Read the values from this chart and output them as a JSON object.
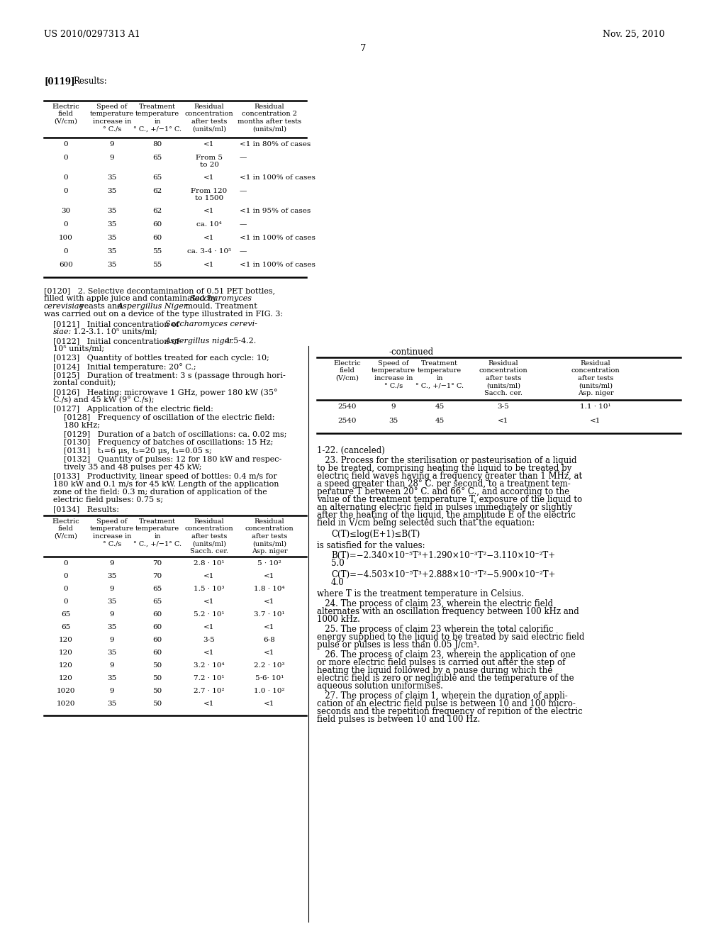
{
  "background_color": "#ffffff",
  "header_left": "US 2010/0297313 A1",
  "header_right": "Nov. 25, 2010",
  "page_number": "7",
  "section_119": "[0119]   Results:",
  "table1_headers": [
    "Electric\nfield\n(V/cm)",
    "Speed of\ntemperature\nincrease in\n° C./s",
    "Treatment\ntemperature\nin\n° C., +/–1° C.",
    "Residual\nconcentration\nafter tests\n(units/ml)",
    "Residual\nconcentration 2\nmonths after tests\n(units/ml)"
  ],
  "table1_rows": [
    [
      "0",
      "9",
      "80",
      "<1",
      "<1 in 80% of cases"
    ],
    [
      "0",
      "9",
      "65",
      "From 5\nto 20",
      "—"
    ],
    [
      "0",
      "35",
      "65",
      "<1",
      "<1 in 100% of cases"
    ],
    [
      "0",
      "35",
      "62",
      "From 120\nto 1500",
      "—"
    ],
    [
      "30",
      "35",
      "62",
      "<1",
      "<1 in 95% of cases"
    ],
    [
      "0",
      "35",
      "60",
      "ca. 10⁴",
      "—"
    ],
    [
      "100",
      "35",
      "60",
      "<1",
      "<1 in 100% of cases"
    ],
    [
      "0",
      "35",
      "55",
      "ca. 3-4 · 10⁵",
      "—"
    ],
    [
      "600",
      "35",
      "55",
      "<1",
      "<1 in 100% of cases"
    ]
  ],
  "paragraph_120": "[0120]   2. Selective decontamination of 0.51 PET bottles, filled with apple juice and contaminated by Saccharomyces cerevisiae yeasts and Aspergillus Niger mould. Treatment was carried out on a device of the type illustrated in FIG. 3:",
  "paragraphs_left": [
    "[0121]   Initial concentration of Saccharomyces cerevi-\nsiae: 1.2-3.1. 10⁵ units/ml;",
    "[0122]   Initial concentration of Aspergillus niger 1.5-4.2.\n10⁵ units/ml;",
    "[0123]   Quantity of bottles treated for each cycle: 10;",
    "[0124]   Initial temperature: 20° C.;",
    "[0125]   Duration of treatment: 3 s (passage through hori-\nzontal conduit);",
    "[0126]   Heating: microwave 1 GHz, power 180 kW (35°\nC./s) and 45 kW (9° C./s);",
    "[0127]   Application of the electric field:",
    "[0128]      Frequency of oscillation of the electric field:\n180 kHz;",
    "[0129]      Duration of a batch of oscillations: ca. 0.02 ms;",
    "[0130]      Frequency of batches of oscillations: 15 Hz;",
    "[0131]      t₁=6 μs, t₂=20 μs, t₃=0.05 s;",
    "[0132]      Quantity of pulses: 12 for 180 kW and respec-\ntively 35 and 48 pulses per 45 kW;",
    "[0133]   Productivity, linear speed of bottles: 0.4 m/s for\n180 kW and 0.1 m/s for 45 kW. Length of the application\nzone of the field: 0.3 m; duration of application of the\nelectric field pulses: 0.75 s;",
    "[0134]   Results:"
  ],
  "continued_label": "-continued",
  "table2_headers": [
    "Electric\nfield\n(V/cm)",
    "Speed of\ntemperature\nincrease in\n° C./s",
    "Treatment\ntemperature\nin\n° C., +/–1° C.",
    "Residual\nconcentration\nafter tests\n(units/ml)\nSacch. cer.",
    "Residual\nconcentration\nafter tests\n(units/ml)\nAsp. niger"
  ],
  "table2_rows": [
    [
      "2540",
      "9",
      "45",
      "3-5",
      "1.1 · 10¹"
    ],
    [
      "2540",
      "35",
      "45",
      "<1",
      "<1"
    ]
  ],
  "table3_headers": [
    "Electric\nfield\n(V/cm)",
    "Speed of\ntemperature\nincrease in\n° C./s",
    "Treatment\ntemperature\nin\n° C., +/–1° C.",
    "Residual\nconcentration\nafter tests\n(units/ml)\nSacch. cer.",
    "Residual\nconcentration\nafter tests\n(units/ml)\nAsp. niger"
  ],
  "table3_rows": [
    [
      "0",
      "9",
      "70",
      "2.8 · 10¹",
      "5 · 10²"
    ],
    [
      "0",
      "35",
      "70",
      "<1",
      "<1"
    ],
    [
      "0",
      "9",
      "65",
      "1.5 · 10³",
      "1.8 · 10⁴"
    ],
    [
      "0",
      "35",
      "65",
      "<1",
      "<1"
    ],
    [
      "65",
      "9",
      "60",
      "5.2 · 10¹",
      "3.7 · 10¹"
    ],
    [
      "65",
      "35",
      "60",
      "<1",
      "<1"
    ],
    [
      "120",
      "9",
      "60",
      "3-5",
      "6-8"
    ],
    [
      "120",
      "35",
      "60",
      "<1",
      "<1"
    ],
    [
      "120",
      "9",
      "50",
      "3.2 · 10⁴",
      "2.2 · 10³"
    ],
    [
      "120",
      "35",
      "50",
      "7.2 · 10¹",
      "5·6· 10¹"
    ],
    [
      "1020",
      "9",
      "50",
      "2.7 · 10²",
      "1.0 · 10²"
    ],
    [
      "1020",
      "35",
      "50",
      "<1",
      "<1"
    ]
  ],
  "right_paragraphs": [
    "1-22. (canceled)",
    "   23. Process for the sterilisation or pasteurisation of a liquid\nto be treated, comprising heating the liquid to be treated by\nelectric field waves having a frequency greater than 1 MHz, at\na speed greater than 28° C. per second, to a treatment tem-\nperature T between 20° C. and 66° C., and according to the\nvalue of the treatment temperature T, exposure of the liquid to\nan alternating electric field in pulses immediately or slightly\nafter the heating of the liquid, the amplitude E of the electric\nfield in V/cm being selected such that the equation:",
    "C(T)≤log(E+1)≤B(T)",
    "is satisfied for the values:",
    "B(T)=−2.340×10⁻⁵T³+1.290×10⁻³T²−3.110×10⁻²T+\n5.0",
    "C(T)=−4.503×10⁻⁵T³+2.888×10⁻³T²−5.900×10⁻²T+\n4.0",
    "where T is the treatment temperature in Celsius.",
    "   24. The process of claim 23, wherein the electric field\nalternates with an oscillation frequency between 100 kHz and\n1000 kHz.",
    "   25. The process of claim 23 wherein the total calorific\nenergy supplied to the liquid to be treated by said electric field\npulse or pulses is less than 0.05 J/cm³.",
    "   26. The process of claim 23, wherein the application of one\nor more electric field pulses is carried out after the step of\nheating the liquid followed by a pause during which the\nelectric field is zero or negligible and the temperature of the\naqueous solution uniformises.",
    "   27. The process of claim 1, wherein the duration of appli-\ncation of an electric field pulse is between 10 and 100 micro-\nseconds and the repetition frequency of repition of the electric\nfield pulses is between 10 and 100 Hz."
  ]
}
